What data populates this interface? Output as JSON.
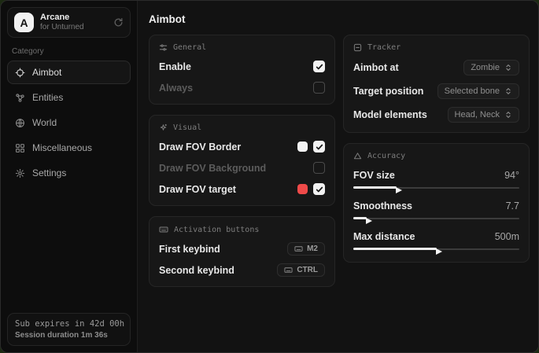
{
  "colors": {
    "white_swatch": "#f2f2f2",
    "red_swatch": "#ef4a49",
    "card_bg": "#171717",
    "window_bg": "#101010"
  },
  "sidebar": {
    "logo_letter": "A",
    "app_title": "Arcane",
    "app_subtitle": "for Unturned",
    "category_label": "Category",
    "items": [
      {
        "label": "Aimbot",
        "selected": true
      },
      {
        "label": "Entities",
        "selected": false
      },
      {
        "label": "World",
        "selected": false
      },
      {
        "label": "Miscellaneous",
        "selected": false
      },
      {
        "label": "Settings",
        "selected": false
      }
    ],
    "status": {
      "line1": "Sub expires in 42d 00h",
      "line2": "Session duration 1m 36s"
    }
  },
  "main": {
    "title": "Aimbot",
    "general": {
      "title": "General",
      "rows": [
        {
          "label": "Enable",
          "checked": true
        },
        {
          "label": "Always",
          "checked": false
        }
      ]
    },
    "visual": {
      "title": "Visual",
      "rows": [
        {
          "label": "Draw FOV Border",
          "swatch": "#f2f2f2",
          "checked": true
        },
        {
          "label": "Draw FOV Background",
          "checked": false
        },
        {
          "label": "Draw FOV target",
          "swatch": "#ef4a49",
          "checked": true
        }
      ]
    },
    "activation": {
      "title": "Activation buttons",
      "rows": [
        {
          "label": "First keybind",
          "key": "M2"
        },
        {
          "label": "Second keybind",
          "key": "CTRL"
        }
      ]
    },
    "tracker": {
      "title": "Tracker",
      "rows": [
        {
          "label": "Aimbot at",
          "value": "Zombie"
        },
        {
          "label": "Target position",
          "value": "Selected bone"
        },
        {
          "label": "Model elements",
          "value": "Head, Neck"
        }
      ]
    },
    "accuracy": {
      "title": "Accuracy",
      "rows": [
        {
          "label": "FOV size",
          "value": "94°",
          "percent": 26
        },
        {
          "label": "Smoothness",
          "value": "7.7",
          "percent": 8
        },
        {
          "label": "Max distance",
          "value": "500m",
          "percent": 50
        }
      ]
    }
  }
}
